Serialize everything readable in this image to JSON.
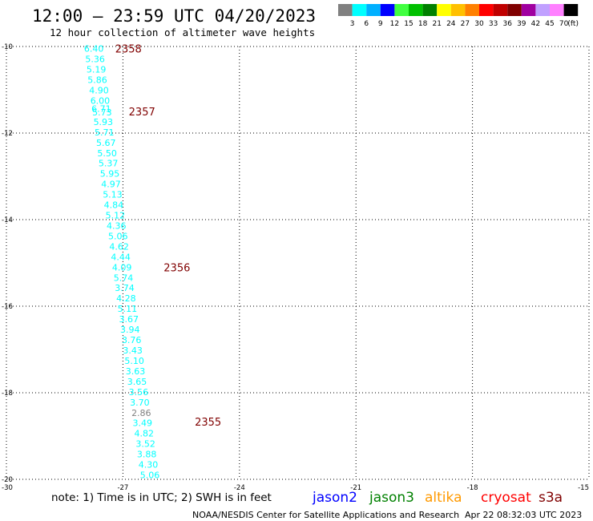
{
  "header": {
    "title": "12:00 – 23:59 UTC 04/20/2023",
    "subtitle": "12 hour collection of altimeter wave heights"
  },
  "legend": {
    "labels": [
      "3",
      "6",
      "9",
      "12",
      "15",
      "18",
      "21",
      "24",
      "27",
      "30",
      "33",
      "36",
      "39",
      "42",
      "45",
      "70"
    ],
    "unit": "(ft)",
    "colors": [
      "#808080",
      "#00ffff",
      "#00b0ff",
      "#0000ff",
      "#40ff40",
      "#00c000",
      "#008000",
      "#ffff00",
      "#ffc000",
      "#ff8000",
      "#ff0000",
      "#c00000",
      "#800000",
      "#a000a0",
      "#c0a0ff",
      "#ff80ff",
      "#000000"
    ]
  },
  "footer": {
    "note": "note: 1) Time is in UTC; 2) SWH is in feet",
    "credit": "NOAA/NESDIS Center for Satellite Applications and Research",
    "timestamp": "Apr 22 08:32:03 UTC 2023",
    "satellites": [
      {
        "name": "jason2",
        "color": "#0000ff"
      },
      {
        "name": "jason3",
        "color": "#008000"
      },
      {
        "name": "altika",
        "color": "#ff9900"
      },
      {
        "name": "cryosat",
        "color": "#ff0000"
      },
      {
        "name": "s3a",
        "color": "#800000"
      }
    ]
  },
  "chart_data": {
    "type": "scatter",
    "xlim": [
      -30,
      -15
    ],
    "ylim": [
      -20,
      -10
    ],
    "xticks": [
      "-30",
      "-27",
      "-24",
      "-21",
      "-18",
      "-15"
    ],
    "yticks": [
      "-10",
      "-12",
      "-14",
      "-16",
      "-18",
      "-20"
    ],
    "xtick_values": [
      -30,
      -27,
      -24,
      -21,
      -18,
      -15
    ],
    "ytick_values": [
      -10,
      -12,
      -14,
      -16,
      -18,
      -20
    ],
    "grid": true,
    "points": [
      {
        "x": -28.0,
        "y": -10.03,
        "label": "6.40",
        "color": "#00ffff"
      },
      {
        "x": -27.97,
        "y": -10.27,
        "label": "5.36",
        "color": "#00ffff"
      },
      {
        "x": -27.94,
        "y": -10.51,
        "label": "5.19",
        "color": "#00ffff"
      },
      {
        "x": -27.91,
        "y": -10.75,
        "label": "5.86",
        "color": "#00ffff"
      },
      {
        "x": -27.87,
        "y": -10.99,
        "label": "4.90",
        "color": "#00ffff"
      },
      {
        "x": -27.84,
        "y": -11.23,
        "label": "6.00",
        "color": "#00ffff"
      },
      {
        "x": -27.81,
        "y": -11.42,
        "label": "6.71",
        "color": "#00ffff"
      },
      {
        "x": -27.79,
        "y": -11.5,
        "label": "5.73",
        "color": "#00ffff"
      },
      {
        "x": -27.76,
        "y": -11.72,
        "label": "5.93",
        "color": "#00ffff"
      },
      {
        "x": -27.73,
        "y": -11.96,
        "label": "5.71",
        "color": "#00ffff"
      },
      {
        "x": -27.69,
        "y": -12.2,
        "label": "5.67",
        "color": "#00ffff"
      },
      {
        "x": -27.66,
        "y": -12.44,
        "label": "5.50",
        "color": "#00ffff"
      },
      {
        "x": -27.63,
        "y": -12.68,
        "label": "5.37",
        "color": "#00ffff"
      },
      {
        "x": -27.59,
        "y": -12.92,
        "label": "5.95",
        "color": "#00ffff"
      },
      {
        "x": -27.56,
        "y": -13.16,
        "label": "4.97",
        "color": "#00ffff"
      },
      {
        "x": -27.52,
        "y": -13.4,
        "label": "5.13",
        "color": "#00ffff"
      },
      {
        "x": -27.49,
        "y": -13.64,
        "label": "4.84",
        "color": "#00ffff"
      },
      {
        "x": -27.45,
        "y": -13.88,
        "label": "5.12",
        "color": "#00ffff"
      },
      {
        "x": -27.42,
        "y": -14.12,
        "label": "4.36",
        "color": "#00ffff"
      },
      {
        "x": -27.38,
        "y": -14.36,
        "label": "5.06",
        "color": "#00ffff"
      },
      {
        "x": -27.35,
        "y": -14.6,
        "label": "4.62",
        "color": "#00ffff"
      },
      {
        "x": -27.31,
        "y": -14.84,
        "label": "4.44",
        "color": "#00ffff"
      },
      {
        "x": -27.28,
        "y": -15.08,
        "label": "4.09",
        "color": "#00ffff"
      },
      {
        "x": -27.24,
        "y": -15.32,
        "label": "5.74",
        "color": "#00ffff"
      },
      {
        "x": -27.21,
        "y": -15.56,
        "label": "3.74",
        "color": "#00ffff"
      },
      {
        "x": -27.17,
        "y": -15.8,
        "label": "4.28",
        "color": "#00ffff"
      },
      {
        "x": -27.14,
        "y": -16.04,
        "label": "5.11",
        "color": "#00ffff"
      },
      {
        "x": -27.1,
        "y": -16.28,
        "label": "3.67",
        "color": "#00ffff"
      },
      {
        "x": -27.07,
        "y": -16.52,
        "label": "3.94",
        "color": "#00ffff"
      },
      {
        "x": -27.03,
        "y": -16.76,
        "label": "3.76",
        "color": "#00ffff"
      },
      {
        "x": -27.0,
        "y": -17.0,
        "label": "3.43",
        "color": "#00ffff"
      },
      {
        "x": -26.96,
        "y": -17.24,
        "label": "5.10",
        "color": "#00ffff"
      },
      {
        "x": -26.93,
        "y": -17.48,
        "label": "3.63",
        "color": "#00ffff"
      },
      {
        "x": -26.89,
        "y": -17.72,
        "label": "3.65",
        "color": "#00ffff"
      },
      {
        "x": -26.85,
        "y": -17.96,
        "label": "3.56",
        "color": "#00ffff"
      },
      {
        "x": -26.82,
        "y": -18.2,
        "label": "3.70",
        "color": "#00ffff"
      },
      {
        "x": -26.78,
        "y": -18.44,
        "label": "2.86",
        "color": "#808080"
      },
      {
        "x": -26.75,
        "y": -18.68,
        "label": "3.49",
        "color": "#00ffff"
      },
      {
        "x": -26.71,
        "y": -18.92,
        "label": "4.82",
        "color": "#00ffff"
      },
      {
        "x": -26.67,
        "y": -19.16,
        "label": "3.52",
        "color": "#00ffff"
      },
      {
        "x": -26.64,
        "y": -19.4,
        "label": "3.88",
        "color": "#00ffff"
      },
      {
        "x": -26.6,
        "y": -19.64,
        "label": "4.30",
        "color": "#00ffff"
      },
      {
        "x": -26.56,
        "y": -19.88,
        "label": "5.06",
        "color": "#00ffff"
      }
    ],
    "time_labels": [
      {
        "x": -27.2,
        "y": -10.05,
        "label": "2358"
      },
      {
        "x": -26.85,
        "y": -11.5,
        "label": "2357"
      },
      {
        "x": -25.95,
        "y": -15.1,
        "label": "2356"
      },
      {
        "x": -25.15,
        "y": -18.67,
        "label": "2355"
      }
    ]
  }
}
